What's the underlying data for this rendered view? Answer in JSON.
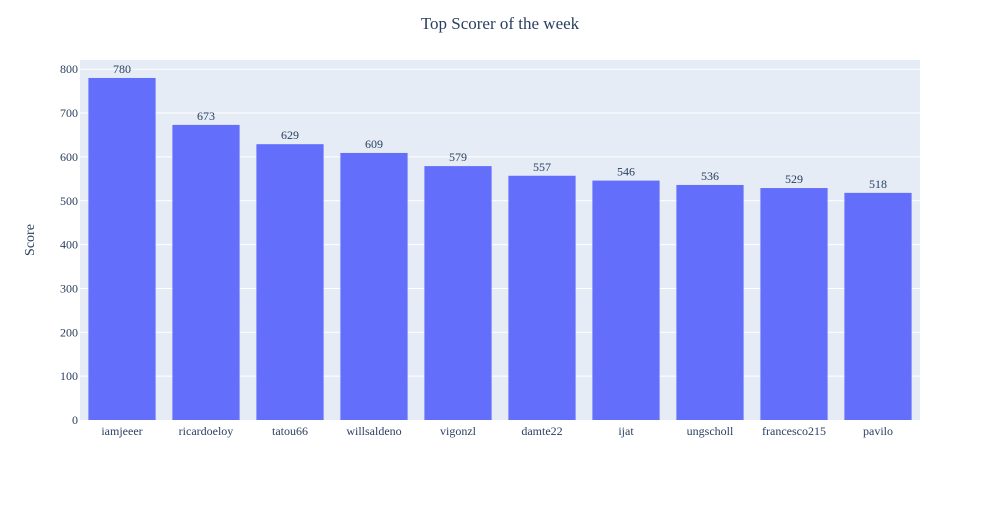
{
  "chart_data": {
    "type": "bar",
    "title": "Top Scorer of the week",
    "xlabel": "",
    "ylabel": "Score",
    "categories": [
      "iamjeeer",
      "ricardoeloy",
      "tatou66",
      "willsaldeno",
      "vigonzl",
      "damte22",
      "ijat",
      "ungscholl",
      "francesco215",
      "pavilo"
    ],
    "values": [
      780,
      673,
      629,
      609,
      579,
      557,
      546,
      536,
      529,
      518
    ],
    "ylim": [
      0,
      821
    ],
    "yticks": [
      0,
      100,
      200,
      300,
      400,
      500,
      600,
      700,
      800
    ],
    "grid": true,
    "bar_color": "#636efa",
    "plot_bgcolor": "#e5ecf6"
  }
}
